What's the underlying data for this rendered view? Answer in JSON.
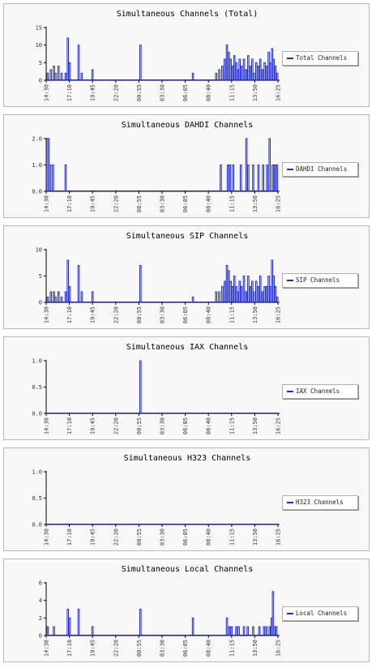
{
  "x_ticks": [
    "14:30",
    "17:10",
    "19:45",
    "22:20",
    "00:55",
    "03:30",
    "06:05",
    "08:40",
    "11:15",
    "13:50",
    "16:25"
  ],
  "colors": {
    "line": "#1f2bd6",
    "axis": "#000000",
    "panel_bg": "#f8f8f8",
    "border": "#b8b8b8"
  },
  "chart_data": [
    {
      "type": "line",
      "title": "Simultaneous Channels (Total)",
      "legend": "Total Channels",
      "legend_position": "right",
      "grid": false,
      "ylim": [
        0,
        15
      ],
      "y_ticks": [
        "0",
        "5",
        "10",
        "15"
      ],
      "x": [
        "14:30",
        "17:10",
        "19:45",
        "22:20",
        "00:55",
        "03:30",
        "06:05",
        "08:40",
        "11:15",
        "13:50",
        "16:25"
      ],
      "spikes": [
        [
          0.5,
          2
        ],
        [
          1.5,
          3
        ],
        [
          2.5,
          4
        ],
        [
          3,
          2
        ],
        [
          4,
          4
        ],
        [
          5,
          2
        ],
        [
          6.3,
          2
        ],
        [
          7,
          12
        ],
        [
          7.6,
          5
        ],
        [
          10.5,
          10
        ],
        [
          11.5,
          2
        ],
        [
          15,
          3
        ],
        [
          30.5,
          10
        ],
        [
          47.5,
          2
        ],
        [
          55,
          2
        ],
        [
          56,
          3
        ],
        [
          57,
          4
        ],
        [
          57.8,
          6
        ],
        [
          58.5,
          10
        ],
        [
          59.1,
          8
        ],
        [
          59.7,
          6
        ],
        [
          60.3,
          4
        ],
        [
          60.9,
          7
        ],
        [
          61.5,
          5
        ],
        [
          62,
          3
        ],
        [
          62.6,
          6
        ],
        [
          63.2,
          4
        ],
        [
          64,
          6
        ],
        [
          64.7,
          3
        ],
        [
          65.4,
          7
        ],
        [
          66.1,
          4
        ],
        [
          66.7,
          6
        ],
        [
          67.2,
          2
        ],
        [
          68,
          5
        ],
        [
          68.7,
          4
        ],
        [
          69.3,
          6
        ],
        [
          70,
          3
        ],
        [
          70.7,
          5
        ],
        [
          71.3,
          4
        ],
        [
          72,
          8
        ],
        [
          72.6,
          5
        ],
        [
          73.1,
          9
        ],
        [
          73.6,
          6
        ],
        [
          74.2,
          4
        ],
        [
          74.8,
          2
        ]
      ]
    },
    {
      "type": "line",
      "title": "Simultaneous DAHDI Channels",
      "legend": "DAHDI Channels",
      "legend_position": "right",
      "grid": false,
      "ylim": [
        0,
        2
      ],
      "y_ticks": [
        "0.0",
        "1.0",
        "2.0"
      ],
      "x": [
        "14:30",
        "17:10",
        "19:45",
        "22:20",
        "00:55",
        "03:30",
        "06:05",
        "08:40",
        "11:15",
        "13:50",
        "16:25"
      ],
      "spikes": [
        [
          0.3,
          2
        ],
        [
          0.8,
          2
        ],
        [
          1.3,
          1
        ],
        [
          2.2,
          1
        ],
        [
          6.3,
          1
        ],
        [
          56.5,
          1
        ],
        [
          58.8,
          1
        ],
        [
          59.5,
          1
        ],
        [
          60.5,
          1
        ],
        [
          63,
          1
        ],
        [
          64.8,
          2
        ],
        [
          65.4,
          1
        ],
        [
          67,
          1
        ],
        [
          68.7,
          1
        ],
        [
          70.2,
          1
        ],
        [
          71.5,
          1
        ],
        [
          72.3,
          2
        ],
        [
          73.3,
          1
        ],
        [
          74,
          1
        ],
        [
          74.7,
          1
        ]
      ]
    },
    {
      "type": "line",
      "title": "Simultaneous SIP Channels",
      "legend": "SIP Channels",
      "legend_position": "right",
      "grid": false,
      "ylim": [
        0,
        10
      ],
      "y_ticks": [
        "0",
        "5",
        "10"
      ],
      "x": [
        "14:30",
        "17:10",
        "19:45",
        "22:20",
        "00:55",
        "03:30",
        "06:05",
        "08:40",
        "11:15",
        "13:50",
        "16:25"
      ],
      "spikes": [
        [
          0.5,
          1
        ],
        [
          1.5,
          2
        ],
        [
          2.5,
          2
        ],
        [
          3,
          1
        ],
        [
          4,
          2
        ],
        [
          5,
          1
        ],
        [
          6.3,
          2
        ],
        [
          7,
          8
        ],
        [
          7.6,
          3
        ],
        [
          10.5,
          7
        ],
        [
          11.5,
          2
        ],
        [
          15,
          2
        ],
        [
          30.5,
          7
        ],
        [
          47.5,
          1
        ],
        [
          55,
          2
        ],
        [
          56,
          2
        ],
        [
          57,
          3
        ],
        [
          57.8,
          4
        ],
        [
          58.5,
          7
        ],
        [
          59.1,
          6
        ],
        [
          59.7,
          4
        ],
        [
          60.3,
          3
        ],
        [
          60.9,
          5
        ],
        [
          61.5,
          3
        ],
        [
          62,
          2
        ],
        [
          62.6,
          4
        ],
        [
          63.2,
          3
        ],
        [
          64,
          5
        ],
        [
          64.7,
          2
        ],
        [
          65.4,
          5
        ],
        [
          66.1,
          3
        ],
        [
          66.7,
          4
        ],
        [
          67.2,
          2
        ],
        [
          68,
          4
        ],
        [
          68.7,
          3
        ],
        [
          69.3,
          5
        ],
        [
          70,
          2
        ],
        [
          70.7,
          3
        ],
        [
          71.3,
          3
        ],
        [
          72,
          5
        ],
        [
          72.6,
          3
        ],
        [
          73.1,
          8
        ],
        [
          73.6,
          5
        ],
        [
          74.2,
          3
        ],
        [
          74.8,
          1
        ]
      ]
    },
    {
      "type": "line",
      "title": "Simultaneous IAX Channels",
      "legend": "IAX Channels",
      "legend_position": "right",
      "grid": false,
      "ylim": [
        0,
        1
      ],
      "y_ticks": [
        "0.0",
        "0.5",
        "1.0"
      ],
      "x": [
        "14:30",
        "17:10",
        "19:45",
        "22:20",
        "00:55",
        "03:30",
        "06:05",
        "08:40",
        "11:15",
        "13:50",
        "16:25"
      ],
      "spikes": [
        [
          30.5,
          1
        ]
      ]
    },
    {
      "type": "line",
      "title": "Simultaneous H323 Channels",
      "legend": "H323 Channels",
      "legend_position": "right",
      "grid": false,
      "ylim": [
        0,
        1
      ],
      "y_ticks": [
        "0.0",
        "0.5",
        "1.0"
      ],
      "x": [
        "14:30",
        "17:10",
        "19:45",
        "22:20",
        "00:55",
        "03:30",
        "06:05",
        "08:40",
        "11:15",
        "13:50",
        "16:25"
      ],
      "spikes": []
    },
    {
      "type": "line",
      "title": "Simultaneous Local Channels",
      "legend": "Local Channels",
      "legend_position": "right",
      "grid": false,
      "ylim": [
        0,
        6
      ],
      "y_ticks": [
        "0",
        "2",
        "4",
        "6"
      ],
      "x": [
        "14:30",
        "17:10",
        "19:45",
        "22:20",
        "00:55",
        "03:30",
        "06:05",
        "08:40",
        "11:15",
        "13:50",
        "16:25"
      ],
      "spikes": [
        [
          0.5,
          1
        ],
        [
          2.5,
          1
        ],
        [
          7,
          3
        ],
        [
          7.6,
          2
        ],
        [
          10.5,
          3
        ],
        [
          15,
          1
        ],
        [
          30.5,
          3
        ],
        [
          47.5,
          2
        ],
        [
          58.5,
          2
        ],
        [
          59.3,
          1
        ],
        [
          60,
          1
        ],
        [
          61.5,
          1
        ],
        [
          62.3,
          1
        ],
        [
          64,
          1
        ],
        [
          65.2,
          1
        ],
        [
          67,
          1
        ],
        [
          69,
          1
        ],
        [
          70.5,
          1
        ],
        [
          71.3,
          1
        ],
        [
          72.3,
          1
        ],
        [
          73,
          2
        ],
        [
          73.4,
          5
        ],
        [
          73.9,
          1
        ],
        [
          74.5,
          1
        ]
      ]
    }
  ]
}
